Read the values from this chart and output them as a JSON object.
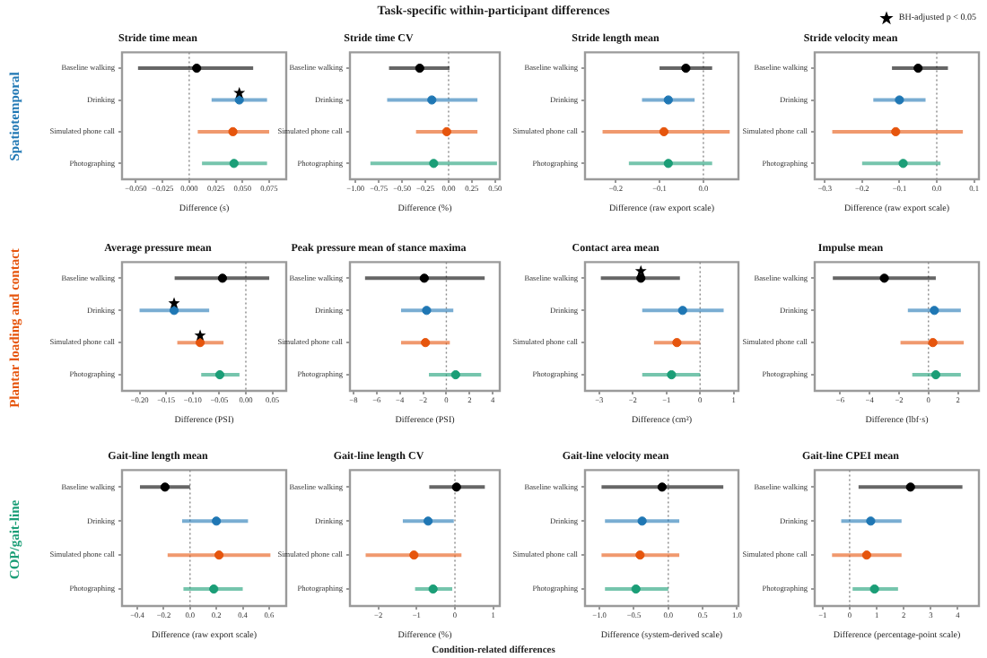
{
  "chart_data": [
    {
      "type": "scatter",
      "orientation": "horizontal",
      "title": "Stride time mean",
      "xlabel": "Difference (s)",
      "categories": [
        "Baseline walking",
        "Drinking",
        "Simulated phone call",
        "Photographing"
      ],
      "series": [
        {
          "marker": "circle",
          "values": [
            0.007,
            0.047,
            0.041,
            0.042
          ],
          "colors": [
            "#000000",
            "#1f77b4",
            "#e6550d",
            "#1b9e77"
          ],
          "errors": [
            [
              -0.048,
              0.06
            ],
            [
              0.021,
              0.073
            ],
            [
              0.008,
              0.075
            ],
            [
              0.012,
              0.073
            ]
          ]
        },
        {
          "name": "BH-adjusted p < 0.05",
          "marker": "star",
          "color": "#000000",
          "values": [
            null,
            0.047,
            null,
            null
          ]
        }
      ],
      "xlim": [
        -0.063,
        0.091
      ],
      "xticks": [
        {
          "value": -0.05,
          "label": "−0.050"
        },
        {
          "value": -0.025,
          "label": "−0.025"
        },
        {
          "value": 0,
          "label": "0.000"
        },
        {
          "value": 0.025,
          "label": "0.025"
        },
        {
          "value": 0.05,
          "label": "0.050"
        },
        {
          "value": 0.075,
          "label": "0.075"
        }
      ],
      "ref_lines": [
        {
          "axis": "x",
          "value": 0,
          "line_style": "dotted",
          "color": "#888888"
        }
      ],
      "legend": "top right",
      "annotations": [
        "Task-specific within-participant differences",
        "Spatiotemporal",
        "Condition-related differences"
      ]
    },
    {
      "type": "scatter",
      "orientation": "horizontal",
      "title": "Stride time CV",
      "xlabel": "Difference (%)",
      "categories": [
        "Baseline walking",
        "Drinking",
        "Simulated phone call",
        "Photographing"
      ],
      "series": [
        {
          "marker": "circle",
          "values": [
            -0.31,
            -0.18,
            -0.02,
            -0.16
          ],
          "colors": [
            "#000000",
            "#1f77b4",
            "#e6550d",
            "#1b9e77"
          ],
          "errors": [
            [
              -0.64,
              0.01
            ],
            [
              -0.66,
              0.31
            ],
            [
              -0.35,
              0.31
            ],
            [
              -0.84,
              0.52
            ]
          ]
        }
      ],
      "xlim": [
        -1.06,
        0.55
      ],
      "xticks": [
        {
          "value": -1,
          "label": "−1.00"
        },
        {
          "value": -0.75,
          "label": "−0.75"
        },
        {
          "value": -0.5,
          "label": "−0.50"
        },
        {
          "value": -0.25,
          "label": "−0.25"
        },
        {
          "value": 0,
          "label": "0.00"
        },
        {
          "value": 0.25,
          "label": "0.25"
        },
        {
          "value": 0.5,
          "label": "0.50"
        }
      ],
      "ref_lines": [
        {
          "axis": "x",
          "value": 0,
          "line_style": "dotted",
          "color": "#888888"
        }
      ]
    },
    {
      "type": "scatter",
      "orientation": "horizontal",
      "title": "Stride length mean",
      "xlabel": "Difference (raw export scale)",
      "categories": [
        "Baseline walking",
        "Drinking",
        "Simulated phone call",
        "Photographing"
      ],
      "series": [
        {
          "marker": "circle",
          "values": [
            -0.04,
            -0.08,
            -0.09,
            -0.08
          ],
          "colors": [
            "#000000",
            "#1f77b4",
            "#e6550d",
            "#1b9e77"
          ],
          "errors": [
            [
              -0.1,
              0.02
            ],
            [
              -0.14,
              -0.02
            ],
            [
              -0.23,
              0.06
            ],
            [
              -0.17,
              0.02
            ]
          ]
        }
      ],
      "xlim": [
        -0.27,
        0.08
      ],
      "xticks": [
        {
          "value": -0.2,
          "label": "−0.2"
        },
        {
          "value": -0.1,
          "label": "−0.1"
        },
        {
          "value": 0,
          "label": "0.0"
        }
      ],
      "ref_lines": [
        {
          "axis": "x",
          "value": 0,
          "line_style": "dotted",
          "color": "#888888"
        }
      ]
    },
    {
      "type": "scatter",
      "orientation": "horizontal",
      "title": "Stride velocity mean",
      "xlabel": "Difference (raw export scale)",
      "categories": [
        "Baseline walking",
        "Drinking",
        "Simulated phone call",
        "Photographing"
      ],
      "series": [
        {
          "marker": "circle",
          "values": [
            -0.05,
            -0.1,
            -0.11,
            -0.09
          ],
          "colors": [
            "#000000",
            "#1f77b4",
            "#e6550d",
            "#1b9e77"
          ],
          "errors": [
            [
              -0.12,
              0.03
            ],
            [
              -0.17,
              -0.03
            ],
            [
              -0.28,
              0.07
            ],
            [
              -0.2,
              0.01
            ]
          ]
        }
      ],
      "xlim": [
        -0.327,
        0.113
      ],
      "xticks": [
        {
          "value": -0.3,
          "label": "−0.3"
        },
        {
          "value": -0.2,
          "label": "−0.2"
        },
        {
          "value": -0.1,
          "label": "−0.1"
        },
        {
          "value": 0,
          "label": "0.0"
        },
        0.1
      ],
      "ref_lines": [
        {
          "axis": "x",
          "value": 0,
          "line_style": "dotted",
          "color": "#888888"
        }
      ]
    },
    {
      "type": "scatter",
      "orientation": "horizontal",
      "title": "Average pressure mean",
      "xlabel": "Difference (PSI)",
      "categories": [
        "Baseline walking",
        "Drinking",
        "Simulated phone call",
        "Photographing"
      ],
      "series": [
        {
          "marker": "circle",
          "values": [
            -0.044,
            -0.135,
            -0.086,
            -0.049
          ],
          "colors": [
            "#000000",
            "#1f77b4",
            "#e6550d",
            "#1b9e77"
          ],
          "errors": [
            [
              -0.134,
              0.044
            ],
            [
              -0.2,
              -0.069
            ],
            [
              -0.129,
              -0.042
            ],
            [
              -0.084,
              -0.012
            ]
          ]
        },
        {
          "marker": "star",
          "color": "#000000",
          "values": [
            null,
            -0.135,
            -0.086,
            null
          ]
        }
      ],
      "xlim": [
        -0.233,
        0.076
      ],
      "xticks": [
        {
          "value": -0.2,
          "label": "−0.20"
        },
        {
          "value": -0.15,
          "label": "−0.15"
        },
        {
          "value": -0.1,
          "label": "−0.10"
        },
        {
          "value": -0.05,
          "label": "−0.05"
        },
        {
          "value": 0,
          "label": "0.00"
        },
        {
          "value": 0.05,
          "label": "0.05"
        }
      ],
      "ref_lines": [
        {
          "axis": "x",
          "value": 0,
          "line_style": "dotted",
          "color": "#888888"
        }
      ],
      "annotations": [
        "Plantar loading and contact"
      ]
    },
    {
      "type": "scatter",
      "orientation": "horizontal",
      "title": "Peak pressure mean of stance maxima",
      "xlabel": "Difference (PSI)",
      "categories": [
        "Baseline walking",
        "Drinking",
        "Simulated phone call",
        "Photographing"
      ],
      "series": [
        {
          "marker": "circle",
          "values": [
            -1.9,
            -1.7,
            -1.8,
            0.8
          ],
          "colors": [
            "#000000",
            "#1f77b4",
            "#e6550d",
            "#1b9e77"
          ],
          "errors": [
            [
              -7.0,
              3.3
            ],
            [
              -3.9,
              0.6
            ],
            [
              -3.9,
              0.3
            ],
            [
              -1.5,
              3.0
            ]
          ]
        }
      ],
      "xlim": [
        -8.3,
        4.6
      ],
      "xticks": [
        {
          "value": -8,
          "label": "−8"
        },
        {
          "value": -6,
          "label": "−6"
        },
        {
          "value": -4,
          "label": "−4"
        },
        {
          "value": -2,
          "label": "−2"
        },
        0,
        2,
        4
      ],
      "ref_lines": [
        {
          "axis": "x",
          "value": 0,
          "line_style": "dotted",
          "color": "#888888"
        }
      ]
    },
    {
      "type": "scatter",
      "orientation": "horizontal",
      "title": "Contact area mean",
      "xlabel": "Difference (cm²)",
      "categories": [
        "Baseline walking",
        "Drinking",
        "Simulated phone call",
        "Photographing"
      ],
      "series": [
        {
          "marker": "circle",
          "values": [
            -1.76,
            -0.52,
            -0.69,
            -0.85
          ],
          "colors": [
            "#000000",
            "#1f77b4",
            "#e6550d",
            "#1b9e77"
          ],
          "errors": [
            [
              -2.95,
              -0.6
            ],
            [
              -1.72,
              0.7
            ],
            [
              -1.37,
              0
            ],
            [
              -1.72,
              0
            ]
          ]
        },
        {
          "marker": "star",
          "color": "#000000",
          "values": [
            -1.76,
            null,
            null,
            null
          ]
        }
      ],
      "xlim": [
        -3.42,
        1.14
      ],
      "xticks": [
        {
          "value": -3,
          "label": "−3"
        },
        {
          "value": -2,
          "label": "−2"
        },
        {
          "value": -1,
          "label": "−1"
        },
        0,
        1
      ],
      "ref_lines": [
        {
          "axis": "x",
          "value": 0,
          "line_style": "dotted",
          "color": "#888888"
        }
      ]
    },
    {
      "type": "scatter",
      "orientation": "horizontal",
      "title": "Impulse mean",
      "xlabel": "Difference (lbf·s)",
      "categories": [
        "Baseline walking",
        "Drinking",
        "Simulated phone call",
        "Photographing"
      ],
      "series": [
        {
          "marker": "circle",
          "values": [
            -3.0,
            0.4,
            0.3,
            0.5
          ],
          "colors": [
            "#000000",
            "#1f77b4",
            "#e6550d",
            "#1b9e77"
          ],
          "errors": [
            [
              -6.5,
              0.5
            ],
            [
              -1.4,
              2.2
            ],
            [
              -1.9,
              2.4
            ],
            [
              -1.1,
              2.2
            ]
          ]
        }
      ],
      "xlim": [
        -7.73,
        3.43
      ],
      "xticks": [
        {
          "value": -6,
          "label": "−6"
        },
        {
          "value": -4,
          "label": "−4"
        },
        {
          "value": -2,
          "label": "−2"
        },
        0,
        2
      ],
      "ref_lines": [
        {
          "axis": "x",
          "value": 0,
          "line_style": "dotted",
          "color": "#888888"
        }
      ]
    },
    {
      "type": "scatter",
      "orientation": "horizontal",
      "title": "Gait-line length mean",
      "xlabel": "Difference (raw export scale)",
      "categories": [
        "Baseline walking",
        "Drinking",
        "Simulated phone call",
        "Photographing"
      ],
      "series": [
        {
          "marker": "circle",
          "values": [
            -0.19,
            0.2,
            0.22,
            0.18
          ],
          "colors": [
            "#000000",
            "#1f77b4",
            "#e6550d",
            "#1b9e77"
          ],
          "errors": [
            [
              -0.38,
              0
            ],
            [
              -0.06,
              0.44
            ],
            [
              -0.17,
              0.61
            ],
            [
              -0.05,
              0.4
            ]
          ]
        }
      ],
      "xlim": [
        -0.516,
        0.73
      ],
      "xticks": [
        {
          "value": -0.4,
          "label": "−0.4"
        },
        {
          "value": -0.2,
          "label": "−0.2"
        },
        {
          "value": 0,
          "label": "0.0"
        },
        0.2,
        0.4,
        0.6
      ],
      "ref_lines": [
        {
          "axis": "x",
          "value": 0,
          "line_style": "dotted",
          "color": "#888888"
        }
      ],
      "annotations": [
        "COP/gait-line"
      ]
    },
    {
      "type": "scatter",
      "orientation": "horizontal",
      "title": "Gait-line length CV",
      "xlabel": "Difference (%)",
      "categories": [
        "Baseline walking",
        "Drinking",
        "Simulated phone call",
        "Photographing"
      ],
      "series": [
        {
          "marker": "circle",
          "values": [
            0.04,
            -0.7,
            -1.07,
            -0.57
          ],
          "colors": [
            "#000000",
            "#1f77b4",
            "#e6550d",
            "#1b9e77"
          ],
          "errors": [
            [
              -0.67,
              0.78
            ],
            [
              -1.36,
              -0.03
            ],
            [
              -2.33,
              0.17
            ],
            [
              -1.04,
              -0.07
            ]
          ]
        }
      ],
      "xlim": [
        -2.74,
        1.17
      ],
      "xticks": [
        {
          "value": -2,
          "label": "−2"
        },
        {
          "value": -1,
          "label": "−1"
        },
        0,
        1
      ],
      "ref_lines": [
        {
          "axis": "x",
          "value": 0,
          "line_style": "dotted",
          "color": "#888888"
        }
      ]
    },
    {
      "type": "scatter",
      "orientation": "horizontal",
      "title": "Gait-line velocity mean",
      "xlabel": "Difference (system-derived scale)",
      "categories": [
        "Baseline walking",
        "Drinking",
        "Simulated phone call",
        "Photographing"
      ],
      "series": [
        {
          "marker": "circle",
          "values": [
            -0.09,
            -0.38,
            -0.41,
            -0.47
          ],
          "colors": [
            "#000000",
            "#1f77b4",
            "#e6550d",
            "#1b9e77"
          ],
          "errors": [
            [
              -0.97,
              0.8
            ],
            [
              -0.92,
              0.16
            ],
            [
              -0.97,
              0.16
            ],
            [
              -0.92,
              0
            ]
          ]
        }
      ],
      "xlim": [
        -1.21,
        1.02
      ],
      "xticks": [
        {
          "value": -1,
          "label": "−1.0"
        },
        {
          "value": -0.5,
          "label": "−0.5"
        },
        {
          "value": 0,
          "label": "0.0"
        },
        0.5,
        {
          "value": 1,
          "label": "1.0"
        }
      ],
      "ref_lines": [
        {
          "axis": "x",
          "value": 0,
          "line_style": "dotted",
          "color": "#888888"
        }
      ]
    },
    {
      "type": "scatter",
      "orientation": "horizontal",
      "title": "Gait-line CPEI mean",
      "xlabel": "Difference (percentage-point scale)",
      "categories": [
        "Baseline walking",
        "Drinking",
        "Simulated phone call",
        "Photographing"
      ],
      "series": [
        {
          "marker": "circle",
          "values": [
            2.25,
            0.78,
            0.63,
            0.92
          ],
          "colors": [
            "#000000",
            "#1f77b4",
            "#e6550d",
            "#1b9e77"
          ],
          "errors": [
            [
              0.33,
              4.17
            ],
            [
              -0.31,
              1.92
            ],
            [
              -0.65,
              1.92
            ],
            [
              0.11,
              1.79
            ]
          ]
        }
      ],
      "xlim": [
        -1.29,
        4.78
      ],
      "xticks": [
        {
          "value": -1,
          "label": "−1"
        },
        0,
        1,
        2,
        3,
        4
      ],
      "ref_lines": [
        {
          "axis": "x",
          "value": 0,
          "line_style": "dotted",
          "color": "#888888"
        }
      ]
    }
  ]
}
